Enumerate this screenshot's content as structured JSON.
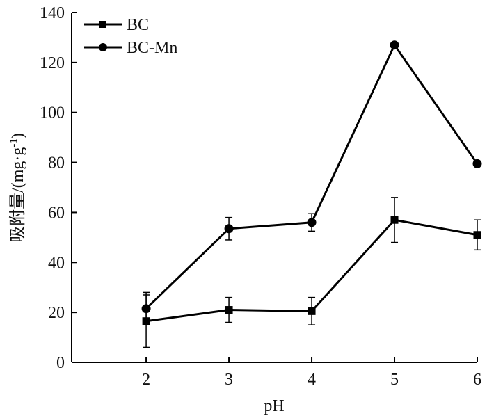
{
  "chart_data": {
    "type": "line",
    "x": [
      2,
      3,
      4,
      5,
      6
    ],
    "xlabel": "pH",
    "ylabel_main": "吸附量/(mg·g",
    "ylabel_sup": "-1",
    "ylabel_end": ")",
    "xlim": [
      1.1,
      6
    ],
    "ylim": [
      0,
      140
    ],
    "xticks": [
      2,
      3,
      4,
      5,
      6
    ],
    "yticks": [
      0,
      20,
      40,
      60,
      80,
      100,
      120,
      140
    ],
    "legend_position": "top-left",
    "grid": false,
    "series": [
      {
        "name": "BC",
        "marker": "square",
        "values": [
          16.5,
          21.0,
          20.5,
          57.0,
          51.0
        ],
        "error": [
          10.5,
          5.0,
          5.5,
          9.0,
          6.0
        ]
      },
      {
        "name": "BC-Mn",
        "marker": "circle",
        "values": [
          21.5,
          53.5,
          56.0,
          127.0,
          79.5
        ],
        "error": [
          6.5,
          4.5,
          3.5,
          0,
          0
        ]
      }
    ],
    "colors": {
      "line": "#000000",
      "axis": "#000000"
    }
  }
}
